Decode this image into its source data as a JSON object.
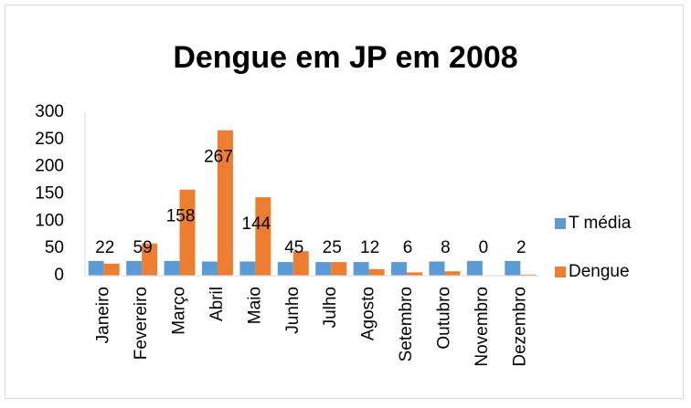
{
  "chart_data": {
    "type": "bar",
    "title": "Dengue em JP em 2008",
    "categories": [
      "Janeiro",
      "Fevereiro",
      "Março",
      "Abril",
      "Maio",
      "Junho",
      "Julho",
      "Agosto",
      "Setembro",
      "Outubro",
      "Novembro",
      "Dezembro"
    ],
    "series": [
      {
        "name": "T média",
        "color": "#5b9bd5",
        "values": [
          27,
          27,
          27,
          26,
          26,
          25,
          25,
          25,
          25,
          26,
          27,
          27
        ]
      },
      {
        "name": "Dengue",
        "color": "#ed7d31",
        "values": [
          22,
          59,
          158,
          267,
          144,
          45,
          25,
          12,
          6,
          8,
          0,
          2
        ],
        "data_labels": true
      }
    ],
    "ylim": [
      0,
      300
    ],
    "yticks": [
      0,
      50,
      100,
      150,
      200,
      250,
      300
    ],
    "grid": false,
    "legend": "right"
  }
}
